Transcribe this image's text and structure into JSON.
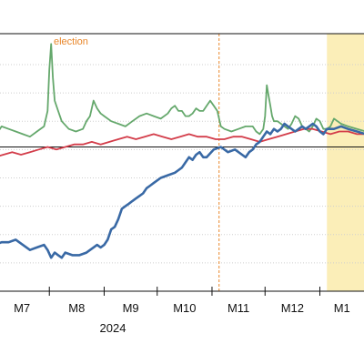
{
  "chart_data": {
    "type": "line",
    "title": "",
    "xlabel": "",
    "ylabel": "",
    "x_tick_labels": [
      "M7",
      "M8",
      "M9",
      "M10",
      "M11",
      "M12",
      "M1"
    ],
    "x_year_label": "2024",
    "x_range_days": [
      0,
      210
    ],
    "x_tick_days": [
      0,
      31,
      62,
      92,
      123,
      153,
      184
    ],
    "y_range": [
      0,
      100
    ],
    "y_gridlines": [
      11,
      22,
      33,
      44,
      55,
      66,
      77,
      88
    ],
    "horizontal_reference": 56,
    "grid": true,
    "annotations": [
      {
        "label": "election",
        "day": 127,
        "color": "#e8862a"
      }
    ],
    "shaded_region": {
      "start_day": 188,
      "end_day": 210,
      "color": "#fbeeb8"
    },
    "series": [
      {
        "color": "#65a86c",
        "x": [
          0,
          4,
          8,
          12,
          16,
          20,
          24,
          28,
          30,
          31,
          32,
          33,
          34,
          36,
          38,
          42,
          46,
          50,
          52,
          54,
          56,
          58,
          60,
          62,
          66,
          70,
          74,
          78,
          82,
          86,
          90,
          94,
          98,
          100,
          102,
          104,
          106,
          108,
          110,
          112,
          114,
          116,
          118,
          120,
          122,
          124,
          126,
          128,
          130,
          134,
          138,
          142,
          146,
          148,
          150,
          152,
          153,
          154,
          155,
          156,
          157,
          158,
          160,
          162,
          164,
          166,
          168,
          170,
          172,
          174,
          176,
          178,
          180,
          182,
          184,
          186,
          188,
          190,
          192,
          194,
          196,
          200,
          205,
          210
        ],
        "y": [
          60,
          64,
          63,
          62,
          61,
          60,
          62,
          64,
          70,
          86,
          96,
          83,
          74,
          70,
          66,
          63,
          62,
          63,
          66,
          68,
          74,
          71,
          69,
          68,
          66,
          65,
          64,
          66,
          68,
          69,
          68,
          67,
          69,
          71,
          72,
          70,
          70,
          68,
          68,
          69,
          71,
          70,
          70,
          72,
          74,
          72,
          70,
          64,
          63,
          62,
          63,
          64,
          64,
          62,
          61,
          63,
          68,
          80,
          76,
          72,
          68,
          66,
          66,
          65,
          64,
          63,
          65,
          68,
          67,
          64,
          63,
          62,
          64,
          67,
          66,
          63,
          63,
          64,
          67,
          66,
          65,
          64,
          63,
          62
        ]
      },
      {
        "color": "#d33d4a",
        "x": [
          0,
          5,
          10,
          15,
          20,
          25,
          30,
          35,
          40,
          45,
          50,
          55,
          60,
          65,
          70,
          75,
          80,
          85,
          90,
          95,
          100,
          105,
          110,
          115,
          120,
          125,
          130,
          135,
          140,
          145,
          150,
          155,
          160,
          165,
          170,
          175,
          180,
          185,
          190,
          195,
          200,
          205,
          210
        ],
        "y": [
          52,
          53,
          54,
          53,
          54,
          55,
          56,
          55,
          56,
          57,
          57,
          58,
          57,
          58,
          59,
          60,
          59,
          60,
          61,
          60,
          59,
          60,
          61,
          60,
          60,
          59,
          59,
          60,
          60,
          59,
          58,
          59,
          60,
          61,
          62,
          63,
          63,
          62,
          61,
          62,
          62,
          61,
          61
        ]
      },
      {
        "color": "#3969a5",
        "x": [
          0,
          4,
          8,
          12,
          16,
          20,
          24,
          28,
          30,
          32,
          34,
          36,
          38,
          40,
          44,
          48,
          52,
          56,
          58,
          60,
          62,
          64,
          66,
          68,
          70,
          72,
          74,
          76,
          78,
          80,
          82,
          84,
          86,
          88,
          90,
          94,
          98,
          102,
          104,
          106,
          108,
          110,
          112,
          114,
          116,
          118,
          120,
          124,
          128,
          132,
          136,
          140,
          142,
          144,
          146,
          148,
          150,
          152,
          154,
          156,
          158,
          160,
          162,
          164,
          166,
          168,
          170,
          172,
          174,
          176,
          178,
          180,
          182,
          184,
          186,
          188,
          192,
          196,
          200,
          205,
          210
        ],
        "y": [
          18,
          19,
          19,
          20,
          18,
          16,
          17,
          18,
          16,
          13,
          15,
          14,
          13,
          15,
          14,
          14,
          15,
          17,
          18,
          17,
          18,
          20,
          24,
          25,
          28,
          32,
          33,
          34,
          35,
          36,
          37,
          38,
          40,
          41,
          42,
          44,
          45,
          46,
          47,
          48,
          50,
          52,
          51,
          53,
          54,
          52,
          52,
          55,
          56,
          54,
          55,
          53,
          52,
          54,
          55,
          57,
          58,
          60,
          62,
          61,
          63,
          62,
          63,
          65,
          64,
          63,
          62,
          63,
          64,
          63,
          64,
          65,
          64,
          62,
          61,
          63,
          63,
          64,
          63,
          62,
          61
        ]
      }
    ]
  }
}
